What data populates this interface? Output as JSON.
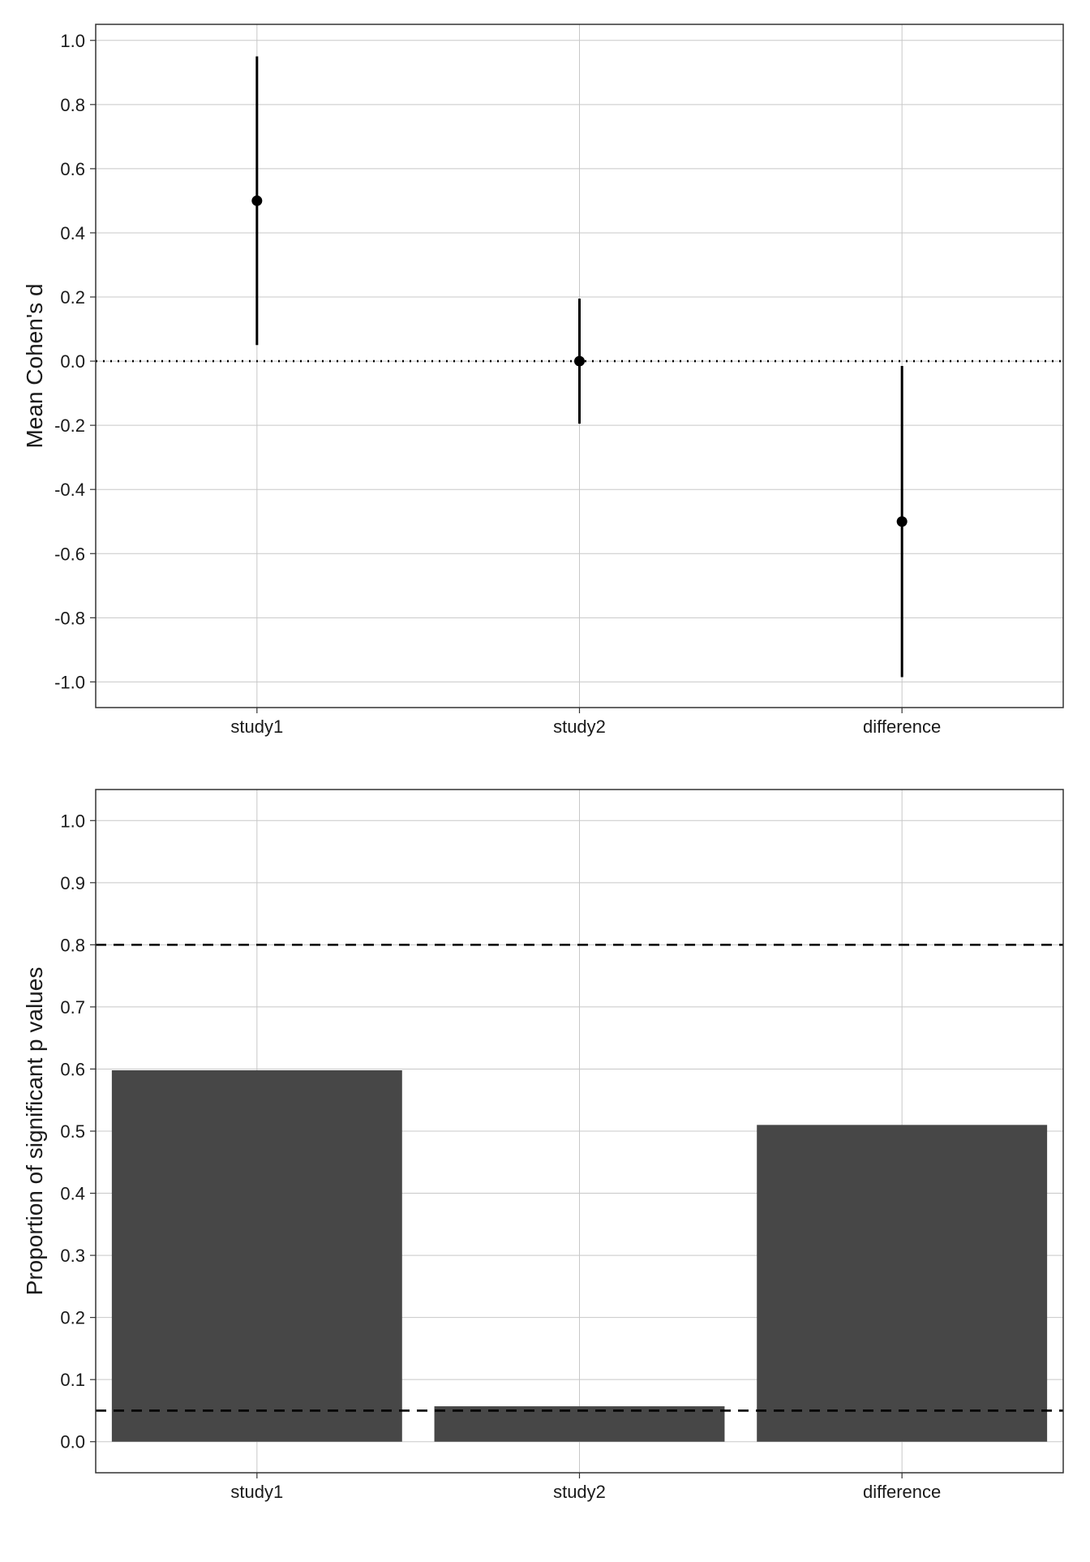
{
  "chart_data": [
    {
      "type": "scatter",
      "subtype": "pointrange",
      "title": "",
      "xlabel": "",
      "ylabel": "Mean Cohen's d",
      "categories": [
        "study1",
        "study2",
        "difference"
      ],
      "values": [
        0.5,
        0.0,
        -0.5
      ],
      "lower": [
        0.05,
        -0.195,
        -0.985
      ],
      "upper": [
        0.95,
        0.195,
        -0.015
      ],
      "ylim": [
        -1.08,
        1.05
      ],
      "yticks": [
        1.0,
        0.8,
        0.6,
        0.4,
        0.2,
        0.0,
        -0.2,
        -0.4,
        -0.6,
        -0.8,
        -1.0
      ],
      "ytick_labels": [
        "1.0",
        "0.8",
        "0.6",
        "0.4",
        "0.2",
        "0.0",
        "-0.2",
        "-0.4",
        "-0.6",
        "-0.8",
        "-1.0"
      ],
      "reference_lines": [
        {
          "y": 0.0,
          "style": "dotted"
        }
      ],
      "grid": true,
      "legend": "none",
      "colors": {
        "marks": "#000000",
        "grid": "#c8c8c8",
        "frame": "#333333"
      }
    },
    {
      "type": "bar",
      "title": "",
      "xlabel": "",
      "ylabel": "Proportion of significant p values",
      "categories": [
        "study1",
        "study2",
        "difference"
      ],
      "values": [
        0.598,
        0.057,
        0.51
      ],
      "ylim": [
        -0.05,
        1.05
      ],
      "yticks": [
        1.0,
        0.9,
        0.8,
        0.7,
        0.6,
        0.5,
        0.4,
        0.3,
        0.2,
        0.1,
        0.0
      ],
      "ytick_labels": [
        "1.0",
        "0.9",
        "0.8",
        "0.7",
        "0.6",
        "0.5",
        "0.4",
        "0.3",
        "0.2",
        "0.1",
        "0.0"
      ],
      "reference_lines": [
        {
          "y": 0.8,
          "style": "dashed"
        },
        {
          "y": 0.05,
          "style": "dashed"
        }
      ],
      "grid": true,
      "legend": "none",
      "colors": {
        "bars": "#474747",
        "grid": "#c8c8c8",
        "frame": "#333333"
      }
    }
  ]
}
